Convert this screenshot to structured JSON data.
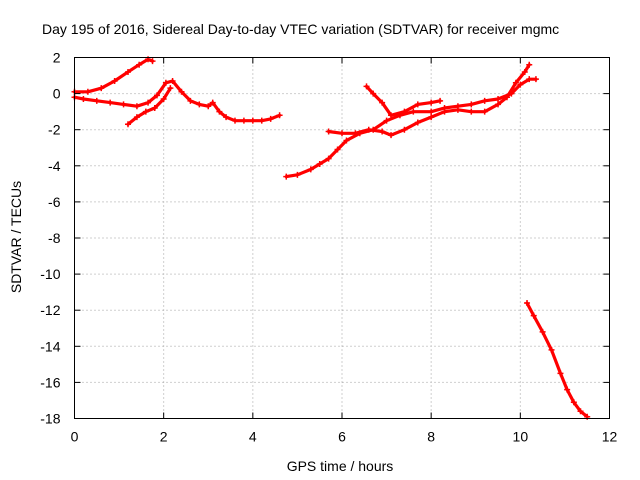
{
  "chart_data": {
    "type": "line",
    "title": "Day 195 of 2016, Sidereal Day-to-day VTEC variation (SDTVAR) for receiver mgmc",
    "xlabel": "GPS time / hours",
    "ylabel": "SDTVAR / TECUs",
    "xlim": [
      0,
      12
    ],
    "ylim": [
      -18,
      2
    ],
    "xticks": [
      "0",
      "2",
      "4",
      "6",
      "8",
      "10",
      "12"
    ],
    "yticks": [
      "2",
      "0",
      "-2",
      "-4",
      "-6",
      "-8",
      "-10",
      "-12",
      "-14",
      "-16",
      "-18"
    ],
    "grid": true,
    "color": "#ff0000",
    "series": [
      {
        "x": [
          0.0,
          0.3,
          0.6,
          0.9,
          1.2,
          1.45,
          1.65,
          1.75
        ],
        "y": [
          0.1,
          0.1,
          0.3,
          0.7,
          1.2,
          1.6,
          1.9,
          1.8
        ]
      },
      {
        "x": [
          0.0,
          0.2,
          0.5,
          0.8,
          1.1,
          1.4,
          1.65,
          1.85,
          2.05,
          2.2,
          2.4,
          2.6,
          2.8,
          3.0,
          3.1,
          3.25,
          3.4,
          3.6,
          3.8,
          4.0,
          4.2,
          4.4,
          4.6
        ],
        "y": [
          -0.2,
          -0.3,
          -0.4,
          -0.5,
          -0.6,
          -0.7,
          -0.5,
          -0.1,
          0.6,
          0.7,
          0.1,
          -0.4,
          -0.6,
          -0.7,
          -0.5,
          -1.0,
          -1.3,
          -1.5,
          -1.5,
          -1.5,
          -1.5,
          -1.4,
          -1.2
        ]
      },
      {
        "x": [
          1.2,
          1.4,
          1.6,
          1.8,
          2.0,
          2.15
        ],
        "y": [
          -1.7,
          -1.3,
          -1.0,
          -0.8,
          -0.3,
          0.3
        ]
      },
      {
        "x": [
          4.75,
          5.0,
          5.3,
          5.5,
          5.7,
          5.9,
          6.1,
          6.4,
          6.7,
          7.0,
          7.3,
          7.6,
          8.0,
          8.3,
          8.6,
          8.9,
          9.2,
          9.5,
          9.8,
          10.0,
          10.2,
          10.35
        ],
        "y": [
          -4.6,
          -4.5,
          -4.2,
          -3.9,
          -3.6,
          -3.1,
          -2.6,
          -2.2,
          -2.0,
          -1.5,
          -1.2,
          -1.0,
          -1.0,
          -0.8,
          -0.7,
          -0.6,
          -0.4,
          -0.3,
          0.0,
          0.5,
          0.8,
          0.8
        ]
      },
      {
        "x": [
          5.7,
          6.0,
          6.3,
          6.6,
          6.9,
          7.1,
          7.4,
          7.7,
          8.0,
          8.3,
          8.6,
          8.9,
          9.2,
          9.5,
          9.7,
          9.9,
          10.1,
          10.2
        ],
        "y": [
          -2.1,
          -2.2,
          -2.2,
          -2.0,
          -2.1,
          -2.3,
          -2.0,
          -1.6,
          -1.3,
          -1.0,
          -0.9,
          -1.0,
          -1.0,
          -0.6,
          -0.2,
          0.6,
          1.2,
          1.6
        ]
      },
      {
        "x": [
          6.55,
          6.7,
          6.9,
          7.1,
          7.4,
          7.7,
          8.0,
          8.2
        ],
        "y": [
          0.4,
          0.0,
          -0.5,
          -1.2,
          -1.0,
          -0.6,
          -0.5,
          -0.4
        ]
      },
      {
        "x": [
          10.15,
          10.3,
          10.5,
          10.7,
          10.9,
          11.05,
          11.2,
          11.35,
          11.5
        ],
        "y": [
          -11.6,
          -12.3,
          -13.2,
          -14.2,
          -15.5,
          -16.4,
          -17.1,
          -17.6,
          -17.9
        ]
      }
    ]
  }
}
